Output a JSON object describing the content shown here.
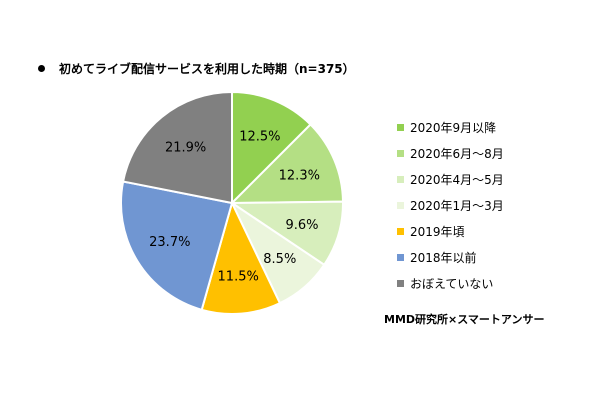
{
  "title": "初めてライブ配信サービスを利用した時期（n=375）",
  "source": "MMD研究所×スマートアンサー",
  "chart_data": {
    "type": "pie",
    "title": "初めてライブ配信サービスを利用した時期（n=375）",
    "unit": "%",
    "legend_position": "right",
    "start_angle": "12 o'clock",
    "direction": "clockwise",
    "categories": [
      "2020年9月以降",
      "2020年6月～8月",
      "2020年4月～5月",
      "2020年1月～3月",
      "2019年頃",
      "2018年以前",
      "おぼえていない"
    ],
    "values": [
      12.5,
      12.3,
      9.6,
      8.5,
      11.5,
      23.7,
      21.9
    ],
    "labels": [
      "12.5%",
      "12.3%",
      "9.6%",
      "8.5%",
      "11.5%",
      "23.7%",
      "21.9%"
    ],
    "colors": [
      "#92d050",
      "#b4df84",
      "#d7eebc",
      "#ebf5dc",
      "#ffc000",
      "#7096d2",
      "#808080"
    ]
  }
}
